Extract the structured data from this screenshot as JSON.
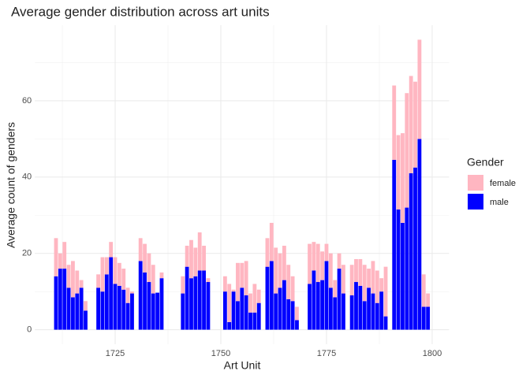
{
  "chart_data": {
    "type": "stacked_bar",
    "title": "Average gender distribution across art units",
    "x_label": "Art Unit",
    "y_label": "Average count of genders",
    "legend_title": "Gender",
    "x": [
      1711,
      1712,
      1713,
      1714,
      1715,
      1716,
      1717,
      1718,
      1721,
      1722,
      1723,
      1724,
      1725,
      1726,
      1727,
      1728,
      1729,
      1731,
      1732,
      1733,
      1734,
      1735,
      1736,
      1741,
      1742,
      1743,
      1744,
      1745,
      1746,
      1747,
      1751,
      1752,
      1753,
      1754,
      1755,
      1756,
      1757,
      1758,
      1759,
      1761,
      1762,
      1763,
      1764,
      1765,
      1766,
      1767,
      1768,
      1771,
      1772,
      1773,
      1774,
      1775,
      1776,
      1777,
      1778,
      1779,
      1781,
      1782,
      1783,
      1784,
      1785,
      1786,
      1787,
      1788,
      1789,
      1791,
      1792,
      1793,
      1794,
      1795,
      1796,
      1797,
      1798,
      1799
    ],
    "series": [
      {
        "name": "male",
        "color": "#0000ff",
        "values": [
          14,
          16,
          16,
          11,
          8.5,
          9.5,
          11,
          5,
          11,
          10,
          14.5,
          19,
          12,
          11.5,
          10.5,
          7,
          9.5,
          18,
          15,
          12.5,
          9.5,
          9.7,
          13.5,
          9.5,
          16.5,
          13.5,
          14,
          15.5,
          15.5,
          12.5,
          10,
          2,
          10,
          7.5,
          11,
          9,
          4.5,
          4.5,
          7,
          16.5,
          18,
          9.5,
          11,
          13,
          8,
          7.5,
          2.5,
          12,
          15.5,
          12.5,
          13,
          18,
          11,
          8.5,
          16,
          9.5,
          9,
          12.5,
          11.5,
          7.5,
          11,
          9.5,
          7,
          10,
          3.5,
          44.5,
          31.5,
          28,
          32,
          41,
          42.5,
          50,
          6,
          6
        ]
      },
      {
        "name": "female",
        "color": "#ffb6c1",
        "values": [
          10,
          4,
          7,
          6,
          9.5,
          6,
          2,
          2.5,
          3.5,
          9,
          4.5,
          4,
          7,
          6,
          5.5,
          4,
          0.5,
          6,
          7.5,
          7.5,
          7.5,
          0,
          1.5,
          4.5,
          5.5,
          10,
          7.5,
          10,
          6.5,
          1,
          4,
          10,
          0.5,
          10,
          6.5,
          9,
          5,
          7.5,
          3.5,
          7.5,
          10,
          12,
          9,
          9,
          9,
          6.5,
          3.5,
          10.5,
          7.5,
          10,
          7.5,
          4.5,
          9,
          4.5,
          4,
          7.5,
          8,
          6,
          7,
          9.5,
          5,
          8.5,
          8.5,
          3.5,
          13,
          19.5,
          19.5,
          23.5,
          30,
          25.5,
          22.5,
          26,
          8.5,
          3.5
        ]
      }
    ],
    "xlim": [
      1706,
      1804
    ],
    "xticks": [
      1725,
      1750,
      1775,
      1800
    ],
    "xminor_ticks": [
      1712.5,
      1737.5,
      1762.5,
      1787.5
    ],
    "ylim": [
      -3.8,
      79.8
    ],
    "yticks": [
      0,
      20,
      40,
      60
    ],
    "yminor_ticks": [
      10,
      30,
      50,
      70
    ],
    "grid": true,
    "legend": "right"
  }
}
